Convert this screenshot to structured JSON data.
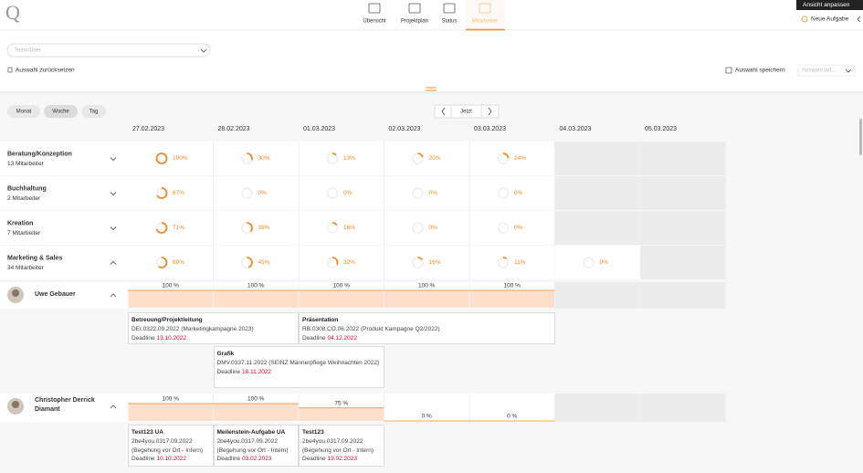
{
  "header": {
    "logo": "Q",
    "nav": [
      "Übersicht",
      "Projektplan",
      "Status",
      "Mitarbeiter"
    ],
    "actions": {
      "customize": "Ansicht anpassen",
      "new_task": "Neue Aufgabe"
    }
  },
  "filters": {
    "team_placeholder": "Team/User",
    "reset": "Auswahl zurücksetzen",
    "save": "Auswahl speichern",
    "load": "Auswahl lad..."
  },
  "toolbar": {
    "views": [
      "Monat",
      "Woche",
      "Tag"
    ],
    "today": "Jetzt"
  },
  "dates": [
    "27.02.2023",
    "28.02.2023",
    "01.03.2023",
    "02.03.2023",
    "03.03.2023",
    "04.03.2023",
    "05.03.2023"
  ],
  "groups": [
    {
      "name": "Beratung/Konzeption",
      "members": "13 Mitarbeiter",
      "cells": [
        {
          "value": 100,
          "label": "100%"
        },
        {
          "value": 30,
          "label": "30%"
        },
        {
          "value": 13,
          "label": "13%"
        },
        {
          "value": 20,
          "label": "20%"
        },
        {
          "value": 24,
          "label": "24%"
        }
      ]
    },
    {
      "name": "Buchhaltung",
      "members": "2 Mitarbeiter",
      "cells": [
        {
          "value": 67,
          "label": "67%"
        },
        {
          "value": 0,
          "label": "0%"
        },
        {
          "value": 0,
          "label": "0%"
        },
        {
          "value": 0,
          "label": "0%"
        },
        {
          "value": 0,
          "label": "0%"
        }
      ]
    },
    {
      "name": "Kreation",
      "members": "7 Mitarbeiter",
      "cells": [
        {
          "value": 71,
          "label": "71%"
        },
        {
          "value": 38,
          "label": "38%"
        },
        {
          "value": 16,
          "label": "16%"
        },
        {
          "value": 0,
          "label": "0%"
        },
        {
          "value": 0,
          "label": "0%"
        }
      ]
    },
    {
      "name": "Marketing & Sales",
      "members": "34 Mitarbeiter",
      "cells": [
        {
          "value": 60,
          "label": "60%"
        },
        {
          "value": 45,
          "label": "45%"
        },
        {
          "value": 32,
          "label": "32%"
        },
        {
          "value": 16,
          "label": "16%"
        },
        {
          "value": 11,
          "label": "11%"
        },
        {
          "value": 0,
          "label": "0%"
        }
      ]
    }
  ],
  "people": [
    {
      "name": "Uwe Gebauer",
      "load": [
        {
          "value": 100,
          "label": "100 %"
        },
        {
          "value": 100,
          "label": "100 %"
        },
        {
          "value": 100,
          "label": "100 %"
        },
        {
          "value": 100,
          "label": "100 %"
        },
        {
          "value": 100,
          "label": "100 %"
        }
      ],
      "tasks": [
        {
          "title": "Betreuung/Projektleitung",
          "ref": "DEI.0322.09.2022 (Marketingkampagne 2023)",
          "deadline_label": "Deadline",
          "deadline": "13.10.2022"
        },
        {
          "title": "Präsentation",
          "ref": "RB.0308.CO.06.2022 (Produkt Kampagne Q2/2022)",
          "deadline_label": "Deadline",
          "deadline": "04.12.2022"
        },
        {
          "title": "Grafik",
          "ref": "DMV.0337.11.2022 (SEINZ Männerpflege Weihnachten 2022)",
          "deadline_label": "Deadline",
          "deadline": "18.11.2022"
        }
      ]
    },
    {
      "name": "Christopher Derrick Diamant",
      "load": [
        {
          "value": 100,
          "label": "100 %"
        },
        {
          "value": 100,
          "label": "100 %"
        },
        {
          "value": 75,
          "label": "75 %"
        },
        {
          "value": 0,
          "label": "0 %"
        },
        {
          "value": 0,
          "label": "0 %"
        }
      ],
      "tasks": [
        {
          "title": "Test123 UA",
          "ref": "2be4you.0317.09.2022 (Begehung vor Ort - Intern)",
          "deadline_label": "Deadline",
          "deadline": "10.10.2022"
        },
        {
          "title": "Meilenstein-Aufgabe UA",
          "ref": "2be4you.0317.09.2022 (Begehung vor Ort - Intern)",
          "deadline_label": "Deadline",
          "deadline": "03.02.2023"
        },
        {
          "title": "Test123",
          "ref": "2be4you.0317.09.2022 (Begehung vor Ort - Intern)",
          "deadline_label": "Deadline",
          "deadline": "13.02.2023"
        }
      ]
    }
  ]
}
